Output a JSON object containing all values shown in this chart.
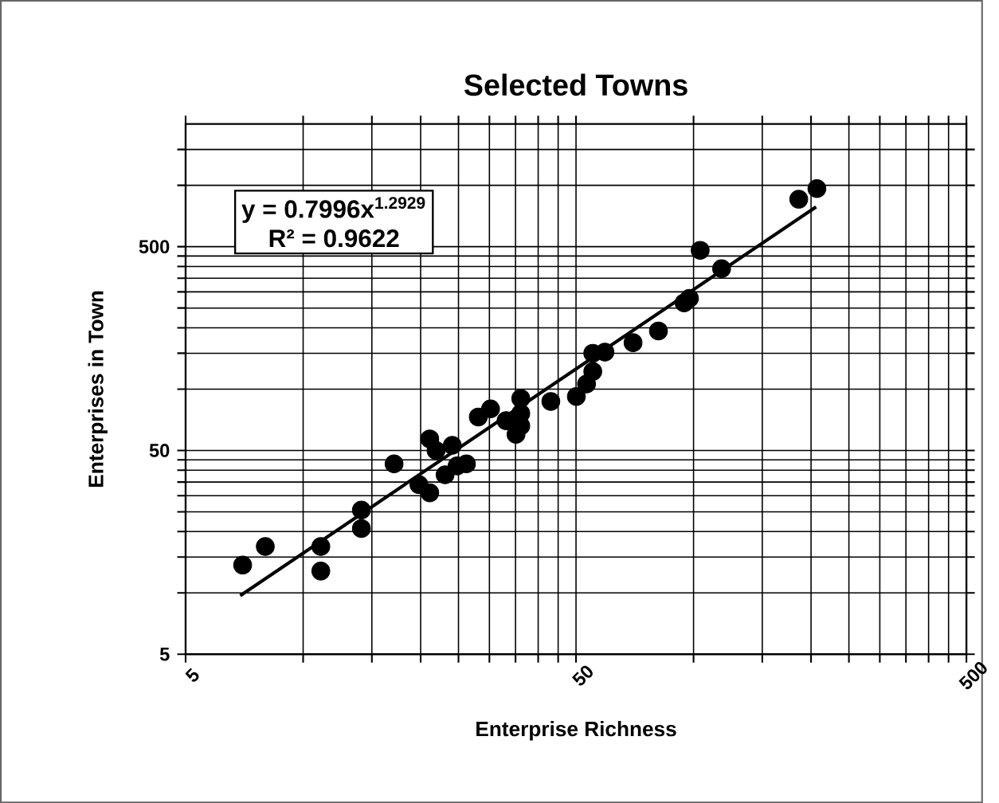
{
  "chart_data": {
    "type": "scatter",
    "title": "Selected Towns",
    "xlabel": "Enterprise Richness",
    "ylabel": "Enterprises in Town",
    "log": "xy",
    "grid": true,
    "xlim": [
      5,
      500
    ],
    "ylim": [
      5,
      2000
    ],
    "xticks": [
      5,
      {
        "value": 10,
        "label": null
      },
      {
        "value": 15,
        "label": null
      },
      {
        "value": 20,
        "label": null
      },
      {
        "value": 25,
        "label": null
      },
      {
        "value": 30,
        "label": null
      },
      {
        "value": 35,
        "label": null
      },
      {
        "value": 40,
        "label": null
      },
      {
        "value": 45,
        "label": null
      },
      50,
      {
        "value": 100,
        "label": null
      },
      {
        "value": 150,
        "label": null
      },
      {
        "value": 200,
        "label": null
      },
      {
        "value": 250,
        "label": null
      },
      {
        "value": 300,
        "label": null
      },
      {
        "value": 350,
        "label": null
      },
      {
        "value": 400,
        "label": null
      },
      {
        "value": 450,
        "label": null
      },
      500
    ],
    "yticks": [
      5,
      {
        "value": 10,
        "label": null
      },
      {
        "value": 15,
        "label": null
      },
      {
        "value": 20,
        "label": null
      },
      {
        "value": 25,
        "label": null
      },
      {
        "value": 30,
        "label": null
      },
      {
        "value": 35,
        "label": null
      },
      {
        "value": 40,
        "label": null
      },
      {
        "value": 45,
        "label": null
      },
      50,
      {
        "value": 100,
        "label": null
      },
      {
        "value": 150,
        "label": null
      },
      {
        "value": 200,
        "label": null
      },
      {
        "value": 250,
        "label": null
      },
      {
        "value": 300,
        "label": null
      },
      {
        "value": 350,
        "label": null
      },
      {
        "value": 400,
        "label": null
      },
      {
        "value": 450,
        "label": null
      },
      500,
      {
        "value": 1000,
        "label": null
      },
      {
        "value": 1500,
        "label": null
      }
    ],
    "annotations": [
      "y = 0.7996x$^{1.2929}$",
      "R² = 0.9622"
    ],
    "series": [
      {
        "marker": "circle",
        "color": "#000000",
        "x": [
          7.0,
          8.0,
          11.1,
          11.1,
          14.1,
          14.1,
          17.1,
          19.8,
          21.1,
          21.1,
          21.9,
          24.1,
          23.1,
          24.8,
          26.2,
          28.1,
          30.2,
          33.1,
          36.1,
          36.1,
          36.1,
          35.1,
          43.1,
          50.1,
          53.2,
          55.2,
          55.2,
          59.3,
          70,
          81.3,
          94.6,
          97.6,
          118,
          104,
          186,
          207
        ],
        "values": [
          13.7,
          16.9,
          16.9,
          12.8,
          25.5,
          20.7,
          43,
          34,
          31,
          57,
          50,
          53,
          38,
          42,
          43,
          73,
          80,
          70,
          90,
          76,
          66,
          60,
          87,
          92,
          106,
          122,
          150,
          152,
          169,
          193,
          265,
          279,
          390,
          480,
          855,
          964
        ]
      },
      {
        "type": "line",
        "marker": "none",
        "color": "#000000",
        "x": [
          6.9,
          206
        ],
        "values": [
          9.7,
          784
        ]
      }
    ]
  }
}
